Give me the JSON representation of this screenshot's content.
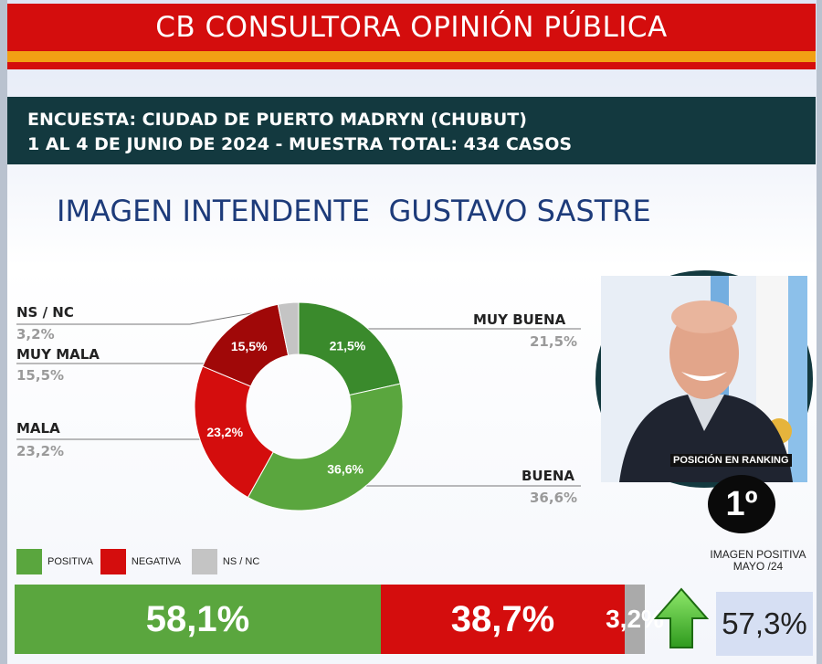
{
  "header": {
    "title": "CB CONSULTORA OPINIÓN PÚBLICA"
  },
  "survey": {
    "line1": "ENCUESTA: CIUDAD DE PUERTO MADRYN (CHUBUT)",
    "line2": "1 AL 4 DE JUNIO DE 2024 - MUESTRA TOTAL: 434 CASOS"
  },
  "title": {
    "part1": "IMAGEN INTENDENTE",
    "part2": "GUSTAVO SASTRE"
  },
  "chart_data": [
    {
      "type": "pie",
      "title": "",
      "categories": [
        "MUY BUENA",
        "BUENA",
        "MALA",
        "MUY MALA",
        "NS / NC"
      ],
      "values": [
        21.5,
        36.6,
        23.2,
        15.5,
        3.2
      ],
      "labels": [
        "21,5%",
        "36,6%",
        "23,2%",
        "15,5%",
        "3,2%"
      ],
      "colors": [
        "#3a8a2c",
        "#5aa63e",
        "#d40d0d",
        "#a00808",
        "#c4c4c4"
      ],
      "donut": true
    },
    {
      "type": "bar",
      "orientation": "stacked-horizontal",
      "categories": [
        "POSITIVA",
        "NEGATIVA",
        "NS / NC"
      ],
      "values": [
        58.1,
        38.7,
        3.2
      ],
      "labels": [
        "58,1%",
        "38,7%",
        "3,2%"
      ],
      "colors": [
        "#5aa63e",
        "#d40d0d",
        "#aaaaaa"
      ],
      "legend": "top-left"
    }
  ],
  "pie_labels": {
    "nsnc": {
      "name": "NS / NC",
      "value": "3,2%"
    },
    "muy_mala": {
      "name": "MUY MALA",
      "value": "15,5%"
    },
    "mala": {
      "name": "MALA",
      "value": "23,2%"
    },
    "muy_buena": {
      "name": "MUY BUENA",
      "value": "21,5%"
    },
    "buena": {
      "name": "BUENA",
      "value": "36,6%"
    }
  },
  "legend": {
    "positiva": "POSITIVA",
    "negativa": "NEGATIVA",
    "nsnc": "NS / NC"
  },
  "ranking": {
    "caption": "POSICIÓN EN RANKING",
    "position": "1º"
  },
  "mayo": {
    "label": "IMAGEN POSITIVA MAYO /24",
    "value": "57,3%"
  },
  "colors": {
    "accent_red": "#d40d0d",
    "accent_orange": "#f2a014",
    "dark_teal": "#13393f",
    "green": "#5aa63e"
  },
  "icons": {
    "arrow": "up-arrow-icon",
    "photo": "person-photo"
  }
}
